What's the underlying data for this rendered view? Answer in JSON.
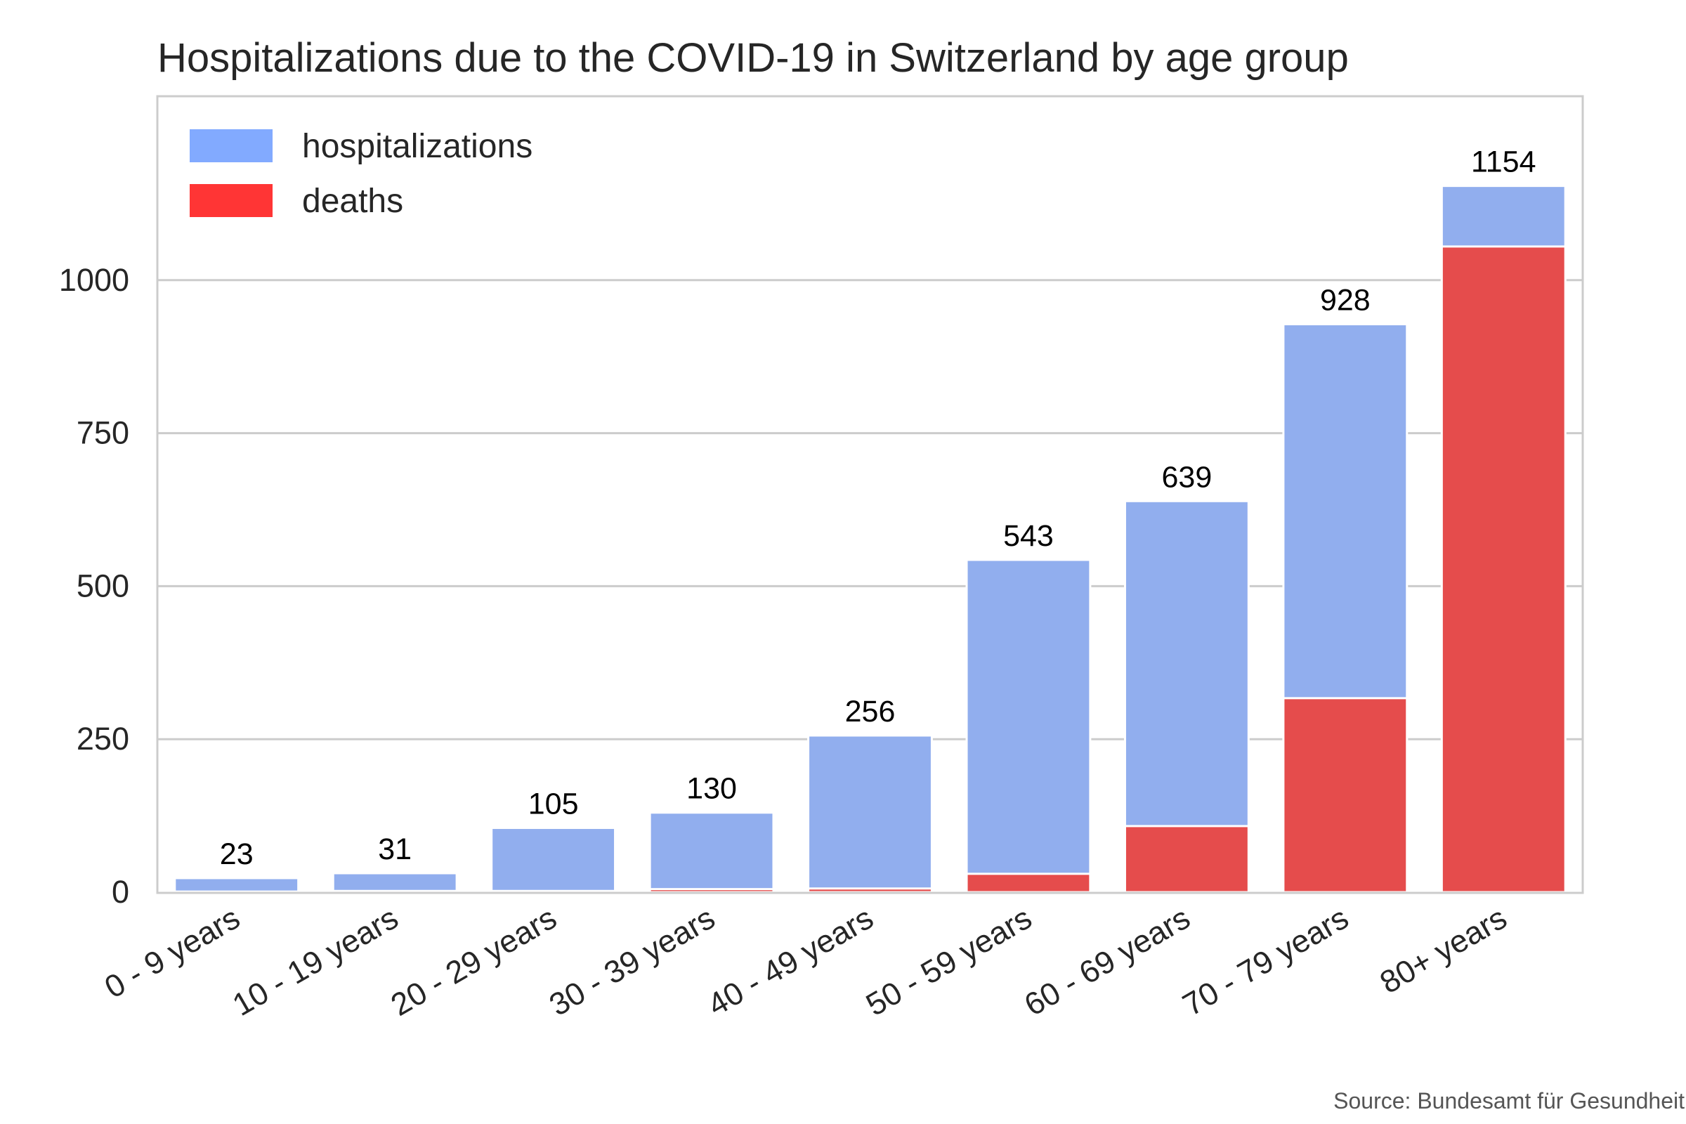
{
  "chart_data": {
    "type": "bar",
    "title": "Hospitalizations due to the COVID-19 in Switzerland by age group",
    "categories": [
      "0 - 9 years",
      "10 - 19 years",
      "20 - 29 years",
      "30 - 39 years",
      "40 - 49 years",
      "50 - 59 years",
      "60 - 69 years",
      "70 - 79 years",
      "80+ years"
    ],
    "series": [
      {
        "name": "hospitalizations",
        "color": "#91aeee",
        "values": [
          23,
          31,
          105,
          130,
          256,
          543,
          639,
          928,
          1154
        ]
      },
      {
        "name": "deaths",
        "color": "#e54c4c",
        "values": [
          1,
          2,
          2,
          5,
          6,
          30,
          108,
          317,
          1055
        ]
      }
    ],
    "data_labels": [
      "23",
      "31",
      "105",
      "130",
      "256",
      "543",
      "639",
      "928",
      "1154"
    ],
    "yticks": [
      0,
      250,
      500,
      750,
      1000
    ],
    "ylim": [
      0,
      1300
    ],
    "grid": "horizontal",
    "legend_position": "top-left",
    "legend_colors": [
      "#82aaff",
      "#ff3535"
    ],
    "source": "Source: Bundesamt für Gesundheit"
  }
}
